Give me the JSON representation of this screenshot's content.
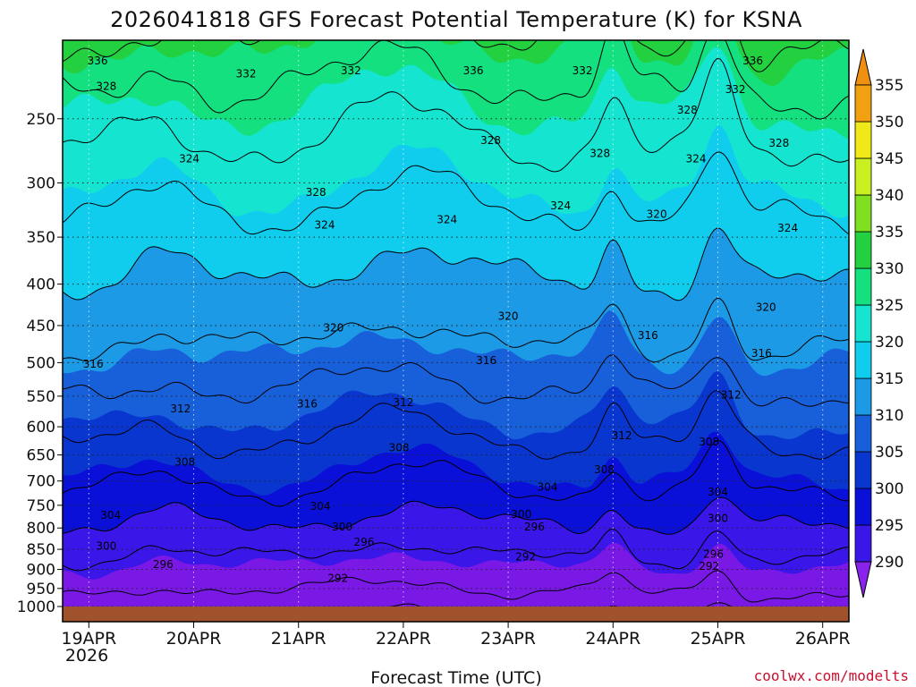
{
  "chart_data": {
    "type": "heatmap",
    "title": "2026041818 GFS Forecast Potential Temperature (K) for KSNA",
    "xlabel": "Forecast Time (UTC)",
    "ylabel": "",
    "credit": "coolwx.com/modelts",
    "x_ticks": [
      "19APR",
      "20APR",
      "21APR",
      "22APR",
      "23APR",
      "24APR",
      "25APR",
      "26APR"
    ],
    "x_tick_hours": [
      6,
      30,
      54,
      78,
      102,
      126,
      150,
      174
    ],
    "x_year_label": "2026",
    "x_range_hours": [
      0,
      180
    ],
    "y_ticks": [
      250,
      300,
      350,
      400,
      450,
      500,
      550,
      600,
      650,
      700,
      750,
      800,
      850,
      900,
      950,
      1000
    ],
    "y_range_hpa": [
      200,
      1000
    ],
    "y_scale": "log",
    "surface_level_hpa": 1008,
    "colorbar": {
      "levels": [
        290,
        295,
        300,
        305,
        310,
        315,
        320,
        325,
        330,
        335,
        340,
        345,
        350,
        355
      ],
      "labels": [
        "290",
        "295",
        "300",
        "305",
        "310",
        "315",
        "320",
        "325",
        "330",
        "335",
        "340",
        "345",
        "350",
        "355"
      ],
      "colors": [
        "#7a18e6",
        "#3a16e8",
        "#0a10d8",
        "#0a36d0",
        "#1760da",
        "#1c9ae6",
        "#10cdee",
        "#14e4d0",
        "#14e080",
        "#22d040",
        "#80e020",
        "#c8f020",
        "#f0e818",
        "#f0a010"
      ],
      "below_color": "#8a22ee",
      "above_color": "#f09010"
    },
    "grid": true,
    "contour_interval_K": 4,
    "theta_profile": {
      "pressure_hpa": [
        1000,
        950,
        900,
        850,
        800,
        750,
        700,
        650,
        600,
        550,
        500,
        450,
        400,
        350,
        300,
        250,
        200
      ],
      "theta_K": [
        290,
        293,
        295,
        297,
        300,
        303,
        305,
        307,
        310,
        312,
        315,
        318,
        320,
        323,
        326,
        330,
        337
      ]
    },
    "contour_labels": [
      {
        "t": 8,
        "p": 212,
        "v": "336"
      },
      {
        "t": 10,
        "p": 228,
        "v": "328"
      },
      {
        "t": 42,
        "p": 220,
        "v": "332"
      },
      {
        "t": 66,
        "p": 218,
        "v": "332"
      },
      {
        "t": 94,
        "p": 218,
        "v": "336"
      },
      {
        "t": 119,
        "p": 218,
        "v": "332"
      },
      {
        "t": 158,
        "p": 212,
        "v": "336"
      },
      {
        "t": 154,
        "p": 230,
        "v": "332"
      },
      {
        "t": 143,
        "p": 244,
        "v": "328"
      },
      {
        "t": 98,
        "p": 266,
        "v": "328"
      },
      {
        "t": 123,
        "p": 276,
        "v": "328"
      },
      {
        "t": 164,
        "p": 268,
        "v": "328"
      },
      {
        "t": 29,
        "p": 280,
        "v": "324"
      },
      {
        "t": 145,
        "p": 280,
        "v": "324"
      },
      {
        "t": 58,
        "p": 308,
        "v": "328"
      },
      {
        "t": 60,
        "p": 338,
        "v": "324"
      },
      {
        "t": 88,
        "p": 333,
        "v": "324"
      },
      {
        "t": 114,
        "p": 320,
        "v": "324"
      },
      {
        "t": 136,
        "p": 328,
        "v": "320"
      },
      {
        "t": 166,
        "p": 341,
        "v": "324"
      },
      {
        "t": 161,
        "p": 427,
        "v": "320"
      },
      {
        "t": 62,
        "p": 453,
        "v": "320"
      },
      {
        "t": 102,
        "p": 438,
        "v": "320"
      },
      {
        "t": 134,
        "p": 463,
        "v": "316"
      },
      {
        "t": 160,
        "p": 487,
        "v": "316"
      },
      {
        "t": 7,
        "p": 502,
        "v": "316"
      },
      {
        "t": 97,
        "p": 497,
        "v": "316"
      },
      {
        "t": 56,
        "p": 562,
        "v": "316"
      },
      {
        "t": 27,
        "p": 570,
        "v": "312"
      },
      {
        "t": 78,
        "p": 560,
        "v": "312"
      },
      {
        "t": 153,
        "p": 548,
        "v": "312"
      },
      {
        "t": 128,
        "p": 615,
        "v": "312"
      },
      {
        "t": 148,
        "p": 626,
        "v": "308"
      },
      {
        "t": 28,
        "p": 663,
        "v": "308"
      },
      {
        "t": 77,
        "p": 637,
        "v": "308"
      },
      {
        "t": 124,
        "p": 678,
        "v": "308"
      },
      {
        "t": 111,
        "p": 712,
        "v": "304"
      },
      {
        "t": 150,
        "p": 722,
        "v": "304"
      },
      {
        "t": 59,
        "p": 752,
        "v": "304"
      },
      {
        "t": 11,
        "p": 772,
        "v": "304"
      },
      {
        "t": 105,
        "p": 770,
        "v": "300"
      },
      {
        "t": 150,
        "p": 778,
        "v": "300"
      },
      {
        "t": 64,
        "p": 797,
        "v": "300"
      },
      {
        "t": 108,
        "p": 797,
        "v": "296"
      },
      {
        "t": 10,
        "p": 842,
        "v": "300"
      },
      {
        "t": 69,
        "p": 833,
        "v": "296"
      },
      {
        "t": 149,
        "p": 862,
        "v": "296"
      },
      {
        "t": 106,
        "p": 868,
        "v": "292"
      },
      {
        "t": 148,
        "p": 892,
        "v": "292"
      },
      {
        "t": 23,
        "p": 887,
        "v": "296"
      },
      {
        "t": 63,
        "p": 923,
        "v": "292"
      }
    ]
  }
}
